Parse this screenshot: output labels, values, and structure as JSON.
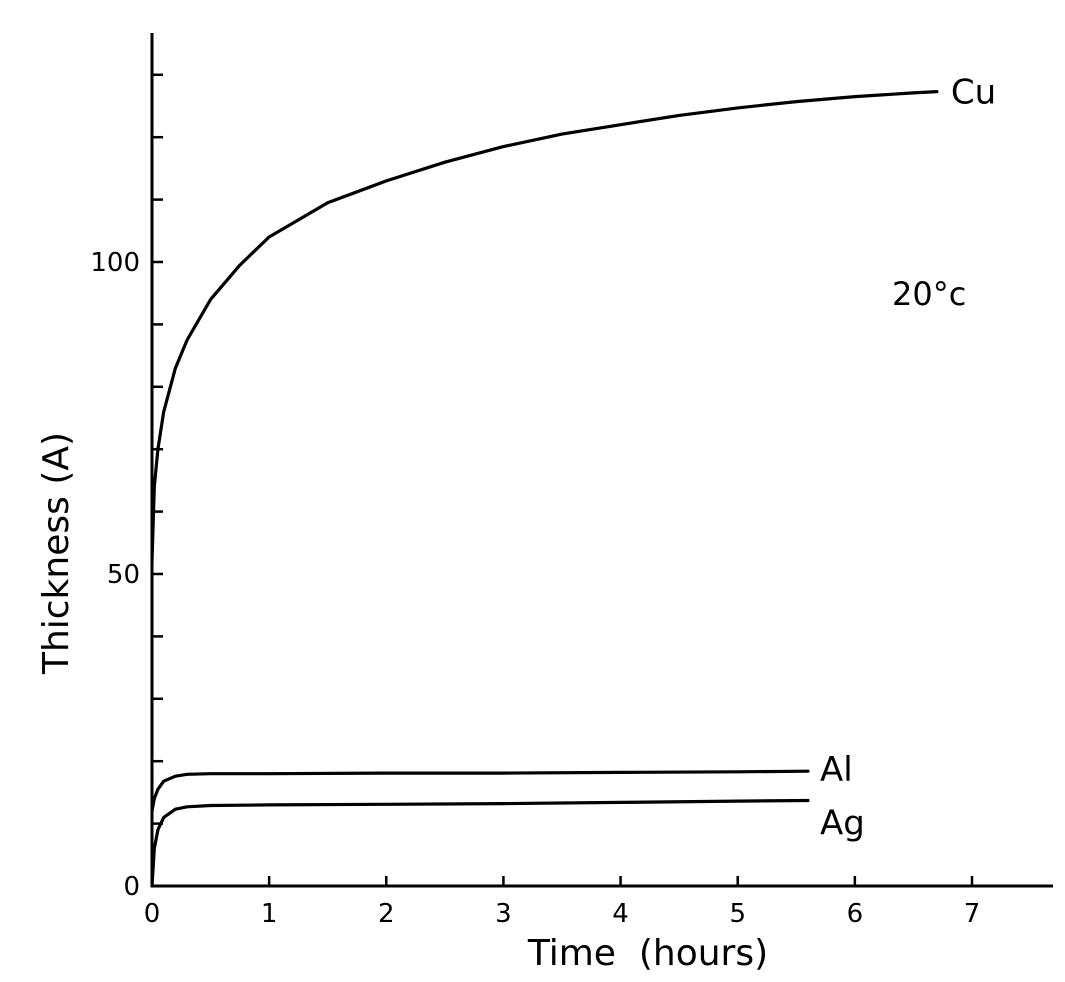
{
  "chart_data": {
    "type": "line",
    "xlabel": "Time  (hours)",
    "ylabel": "Thickness (A)",
    "xlim": [
      0,
      7.7
    ],
    "ylim": [
      0,
      135
    ],
    "x_ticks": [
      0,
      1,
      2,
      3,
      4,
      5,
      6,
      7
    ],
    "x_tick_labels": [
      "0",
      "1",
      "2",
      "3",
      "4",
      "5",
      "6",
      "7"
    ],
    "y_ticks": [
      0,
      10,
      20,
      30,
      40,
      50,
      60,
      70,
      80,
      90,
      100,
      110,
      120,
      130
    ],
    "y_tick_labels": [
      {
        "value": 0,
        "label": "0"
      },
      {
        "value": 50,
        "label": "50"
      },
      {
        "value": 100,
        "label": "100"
      }
    ],
    "annotation": "20°c",
    "grid": false,
    "series": [
      {
        "name": "Cu",
        "points": [
          [
            0,
            52
          ],
          [
            0.02,
            64
          ],
          [
            0.05,
            70
          ],
          [
            0.1,
            76
          ],
          [
            0.2,
            83
          ],
          [
            0.3,
            87.5
          ],
          [
            0.5,
            94
          ],
          [
            0.75,
            99.5
          ],
          [
            1,
            104
          ],
          [
            1.5,
            109.5
          ],
          [
            2,
            113
          ],
          [
            2.5,
            116
          ],
          [
            3,
            118.5
          ],
          [
            3.5,
            120.5
          ],
          [
            4,
            122
          ],
          [
            4.5,
            123.5
          ],
          [
            5,
            124.7
          ],
          [
            5.5,
            125.7
          ],
          [
            6,
            126.5
          ],
          [
            6.5,
            127.1
          ],
          [
            6.7,
            127.3
          ]
        ]
      },
      {
        "name": "Al",
        "points": [
          [
            0,
            12
          ],
          [
            0.02,
            14
          ],
          [
            0.05,
            15.5
          ],
          [
            0.1,
            16.8
          ],
          [
            0.2,
            17.6
          ],
          [
            0.3,
            17.9
          ],
          [
            0.5,
            18
          ],
          [
            1,
            18
          ],
          [
            2,
            18.1
          ],
          [
            3,
            18.1
          ],
          [
            4,
            18.2
          ],
          [
            5,
            18.3
          ],
          [
            5.6,
            18.4
          ]
        ]
      },
      {
        "name": "Ag",
        "points": [
          [
            0,
            0
          ],
          [
            0.02,
            6
          ],
          [
            0.05,
            9
          ],
          [
            0.1,
            11
          ],
          [
            0.2,
            12.3
          ],
          [
            0.3,
            12.7
          ],
          [
            0.5,
            12.9
          ],
          [
            1,
            13
          ],
          [
            2,
            13.1
          ],
          [
            3,
            13.2
          ],
          [
            4,
            13.4
          ],
          [
            5,
            13.6
          ],
          [
            5.6,
            13.7
          ]
        ]
      }
    ]
  }
}
